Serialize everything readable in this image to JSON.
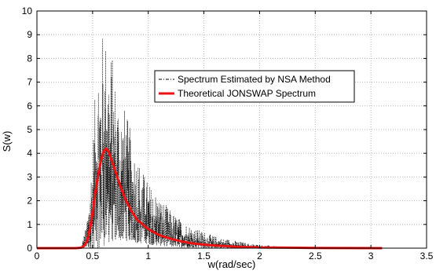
{
  "chart_data": {
    "type": "line",
    "title": "",
    "xlabel": "w(rad/sec)",
    "ylabel": "S(w)",
    "xlim": [
      0,
      3.5
    ],
    "ylim": [
      0,
      10
    ],
    "x_ticks": [
      0,
      0.5,
      1,
      1.5,
      2,
      2.5,
      3,
      3.5
    ],
    "y_ticks": [
      0,
      1,
      2,
      3,
      4,
      5,
      6,
      7,
      8,
      9,
      10
    ],
    "x_tick_labels": [
      "0",
      "0.5",
      "1",
      "1.5",
      "2",
      "2.5",
      "3",
      "3.5"
    ],
    "y_tick_labels": [
      "0",
      "1",
      "2",
      "3",
      "4",
      "5",
      "6",
      "7",
      "8",
      "9",
      "10"
    ],
    "grid": true,
    "legend_position": "upper-center",
    "series": [
      {
        "name": "Spectrum Estimated by NSA Method",
        "style": "dash-dot",
        "color": "#000000",
        "envelope_x": [
          0.4,
          0.45,
          0.5,
          0.55,
          0.6,
          0.65,
          0.7,
          0.75,
          0.8,
          0.85,
          0.9,
          0.95,
          1.0,
          1.1,
          1.2,
          1.3,
          1.4,
          1.5,
          1.6,
          1.7,
          1.8,
          1.9,
          2.0,
          2.2
        ],
        "envelope_upper": [
          0.1,
          1.2,
          4.5,
          8.8,
          9.3,
          9.0,
          7.5,
          6.5,
          5.8,
          4.8,
          4.0,
          3.3,
          2.8,
          2.2,
          1.6,
          1.2,
          0.9,
          0.7,
          0.5,
          0.4,
          0.3,
          0.2,
          0.15,
          0.05
        ],
        "envelope_lower": [
          0.0,
          0.0,
          0.0,
          0.0,
          0.1,
          0.2,
          0.3,
          0.3,
          0.3,
          0.3,
          0.2,
          0.2,
          0.15,
          0.1,
          0.05,
          0.03,
          0.02,
          0.01,
          0.0,
          0.0,
          0.0,
          0.0,
          0.0,
          0.0
        ]
      },
      {
        "name": "Theoretical JONSWAP Spectrum",
        "style": "solid",
        "color": "#ee1111",
        "x": [
          0.0,
          0.35,
          0.4,
          0.42,
          0.45,
          0.48,
          0.5,
          0.52,
          0.55,
          0.58,
          0.6,
          0.62,
          0.64,
          0.66,
          0.7,
          0.75,
          0.8,
          0.85,
          0.9,
          1.0,
          1.1,
          1.2,
          1.3,
          1.4,
          1.5,
          1.6,
          1.8,
          2.0,
          2.5,
          3.1
        ],
        "values": [
          0.0,
          0.0,
          0.02,
          0.08,
          0.3,
          0.9,
          1.5,
          2.2,
          3.1,
          3.8,
          4.1,
          4.2,
          4.1,
          3.85,
          3.3,
          2.6,
          2.0,
          1.55,
          1.2,
          0.8,
          0.55,
          0.4,
          0.28,
          0.2,
          0.15,
          0.11,
          0.06,
          0.03,
          0.01,
          0.0
        ]
      }
    ]
  },
  "colors": {
    "grid": "#b8b8b8",
    "axis": "#000000",
    "jonswap": "#ee1111",
    "nsa": "#000000"
  }
}
